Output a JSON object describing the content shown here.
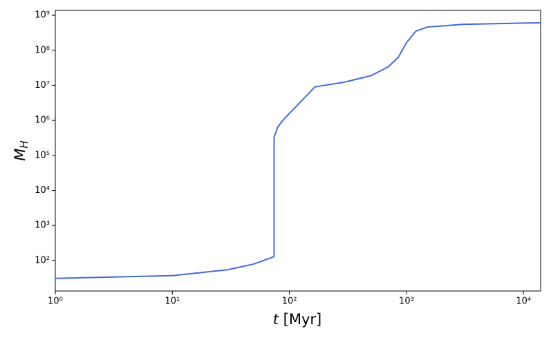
{
  "chart_data": {
    "type": "line",
    "logx": true,
    "logy": true,
    "grid": false,
    "xlabel": {
      "symbol": "t",
      "unit": "[Myr]"
    },
    "ylabel": {
      "main": "M",
      "sub": "H"
    },
    "x": [
      1,
      10,
      30,
      50,
      74,
      74,
      75,
      80,
      90,
      110,
      165,
      300,
      500,
      700,
      850,
      1000,
      1200,
      1500,
      3000,
      10000,
      13800
    ],
    "series": [
      {
        "name": "M_H",
        "color": "#4169e1",
        "values": [
          31,
          37,
          55,
          80,
          130,
          340000,
          380000,
          670000,
          1100000,
          2200000,
          9000000,
          12500000,
          19000000,
          34000000,
          63000000,
          165000000,
          350000000,
          460000000,
          550000000,
          600000000,
          610000000
        ]
      }
    ],
    "xlim": [
      1,
      14000
    ],
    "ylim": [
      13.5,
      1380000000
    ],
    "xticks": [
      {
        "value": 1,
        "label": "10⁰"
      },
      {
        "value": 10,
        "label": "10¹"
      },
      {
        "value": 100,
        "label": "10²"
      },
      {
        "value": 1000,
        "label": "10³"
      },
      {
        "value": 10000,
        "label": "10⁴"
      }
    ],
    "yticks": [
      {
        "value": 100,
        "label": "10²"
      },
      {
        "value": 1000,
        "label": "10³"
      },
      {
        "value": 10000,
        "label": "10⁴"
      },
      {
        "value": 100000,
        "label": "10⁵"
      },
      {
        "value": 1000000,
        "label": "10⁶"
      },
      {
        "value": 10000000,
        "label": "10⁷"
      },
      {
        "value": 100000000,
        "label": "10⁸"
      },
      {
        "value": 1000000000,
        "label": "10⁹"
      }
    ]
  }
}
